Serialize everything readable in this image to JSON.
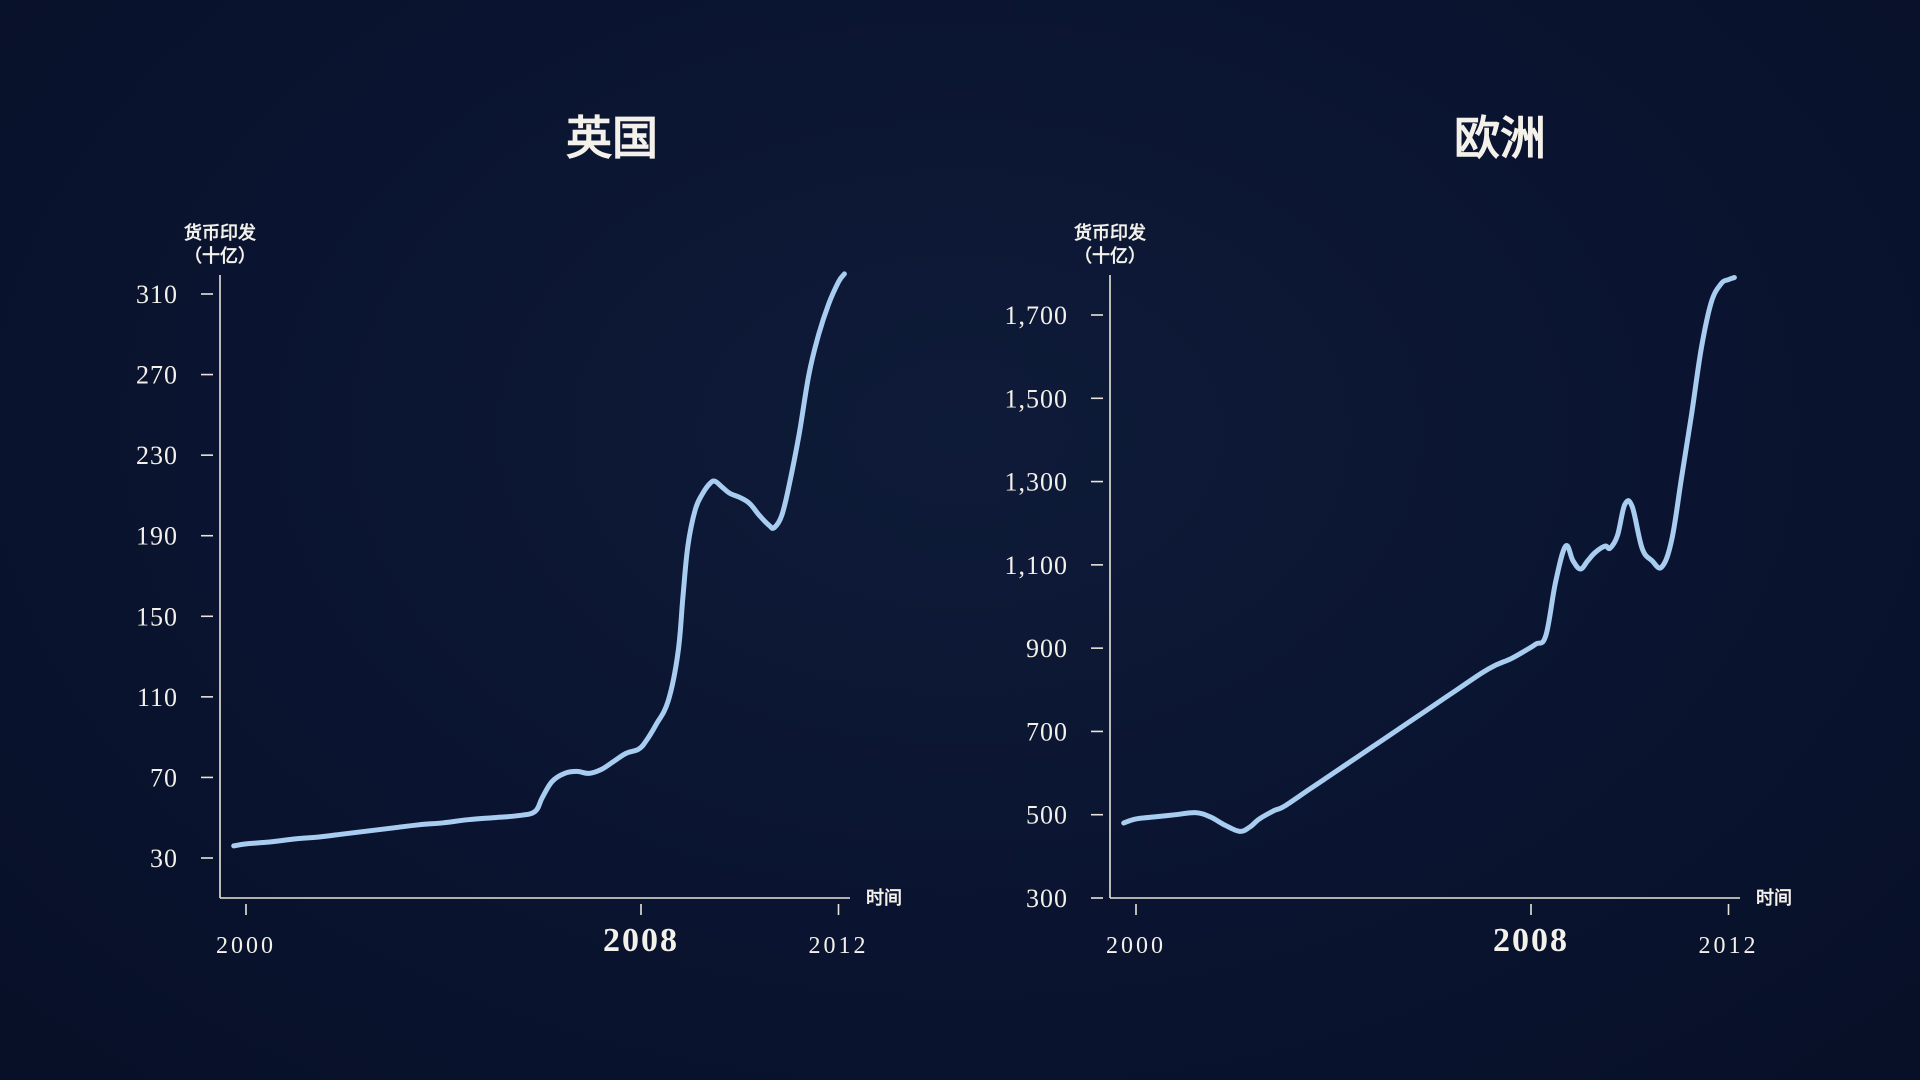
{
  "chart_data": [
    {
      "type": "line",
      "title": "英国",
      "ylabel_line1": "货币印发",
      "ylabel_line2": "（十亿）",
      "xlabel": "时间",
      "ylim": [
        14,
        324
      ],
      "xlim": [
        1999.7,
        2012.3
      ],
      "yticks": [
        {
          "value": 30,
          "label": "30"
        },
        {
          "value": 70,
          "label": "70"
        },
        {
          "value": 110,
          "label": "110"
        },
        {
          "value": 150,
          "label": "150"
        },
        {
          "value": 190,
          "label": "190"
        },
        {
          "value": 230,
          "label": "230"
        },
        {
          "value": 270,
          "label": "270"
        },
        {
          "value": 310,
          "label": "310"
        }
      ],
      "xticks": [
        {
          "value": 2000,
          "label": "2000",
          "bold": false
        },
        {
          "value": 2008,
          "label": "2008",
          "bold": true
        },
        {
          "value": 2012,
          "label": "2012",
          "bold": false
        }
      ],
      "color": "#a9cdf0",
      "series": [
        {
          "x": [
            1999.75,
            2000.0,
            2000.5,
            2001.0,
            2001.5,
            2002.0,
            2002.5,
            2003.0,
            2003.5,
            2004.0,
            2004.5,
            2005.0,
            2005.5,
            2005.85,
            2006.0,
            2006.2,
            2006.45,
            2006.7,
            2006.95,
            2007.2,
            2007.45,
            2007.7,
            2007.95,
            2008.1,
            2008.3,
            2008.55,
            2008.75,
            2008.85,
            2008.95,
            2009.1,
            2009.25,
            2009.4,
            2009.5,
            2009.65,
            2009.8,
            2010.0,
            2010.2,
            2010.4,
            2010.6,
            2010.7,
            2010.85,
            2011.0,
            2011.2,
            2011.4,
            2011.6,
            2011.8,
            2012.0,
            2012.12
          ],
          "y": [
            36,
            37,
            38,
            39.5,
            40.5,
            42,
            43.5,
            45,
            46.5,
            47.5,
            49,
            50,
            51,
            53,
            60,
            68,
            72,
            73,
            72,
            74,
            78,
            82,
            84,
            88,
            96,
            108,
            132,
            160,
            185,
            203,
            211,
            216,
            217,
            214,
            211,
            209,
            206,
            200,
            195,
            194,
            200,
            215,
            240,
            270,
            290,
            305,
            316,
            320
          ]
        }
      ]
    },
    {
      "type": "line",
      "title": "欧洲",
      "ylabel_line1": "货币印发",
      "ylabel_line2": "（十亿）",
      "xlabel": "时间",
      "ylim": [
        300,
        1820
      ],
      "xlim": [
        1999.7,
        2012.3
      ],
      "yticks": [
        {
          "value": 300,
          "label": "300"
        },
        {
          "value": 500,
          "label": "500"
        },
        {
          "value": 700,
          "label": "700"
        },
        {
          "value": 900,
          "label": "900"
        },
        {
          "value": 1100,
          "label": "1,100"
        },
        {
          "value": 1300,
          "label": "1,300"
        },
        {
          "value": 1500,
          "label": "1,500"
        },
        {
          "value": 1700,
          "label": "1,700"
        }
      ],
      "xticks": [
        {
          "value": 2000,
          "label": "2000",
          "bold": false
        },
        {
          "value": 2008,
          "label": "2008",
          "bold": true
        },
        {
          "value": 2012,
          "label": "2012",
          "bold": false
        }
      ],
      "color": "#a9cdf0",
      "series": [
        {
          "x": [
            1999.75,
            2000.0,
            2000.4,
            2000.8,
            2001.2,
            2001.5,
            2001.8,
            2002.1,
            2002.3,
            2002.5,
            2002.8,
            2003.0,
            2003.5,
            2004.0,
            2004.5,
            2005.0,
            2005.5,
            2006.0,
            2006.5,
            2007.0,
            2007.3,
            2007.6,
            2007.9,
            2008.1,
            2008.3,
            2008.5,
            2008.7,
            2008.85,
            2009.0,
            2009.15,
            2009.3,
            2009.5,
            2009.6,
            2009.75,
            2009.9,
            2010.05,
            2010.25,
            2010.45,
            2010.65,
            2010.85,
            2011.05,
            2011.25,
            2011.45,
            2011.65,
            2011.85,
            2012.0,
            2012.12
          ],
          "y": [
            480,
            490,
            495,
            500,
            505,
            495,
            475,
            460,
            470,
            490,
            510,
            520,
            560,
            600,
            640,
            680,
            720,
            760,
            800,
            840,
            860,
            875,
            895,
            910,
            930,
            1060,
            1145,
            1110,
            1090,
            1110,
            1130,
            1145,
            1140,
            1170,
            1245,
            1240,
            1140,
            1110,
            1095,
            1160,
            1310,
            1460,
            1620,
            1730,
            1775,
            1785,
            1790
          ]
        }
      ]
    }
  ]
}
